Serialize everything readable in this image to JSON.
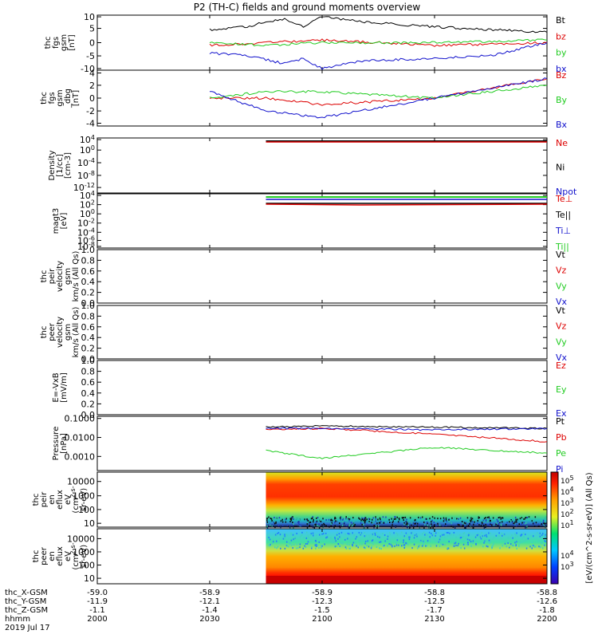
{
  "title": "P2 (TH-C) fields and ground moments overview",
  "colors": {
    "black": "#000000",
    "red": "#dd0000",
    "green": "#22cc22",
    "blue": "#1010cc"
  },
  "panels": [
    {
      "id": "fgs",
      "ylabel": [
        "thc",
        "fgs",
        "gsm",
        "[nT]"
      ],
      "ticks": [
        "10",
        "5",
        "0",
        "-5",
        "-10"
      ],
      "legend": [
        {
          "label": "Bt",
          "color": "#000000"
        },
        {
          "label": "bz",
          "color": "#dd0000"
        },
        {
          "label": "by",
          "color": "#22cc22"
        },
        {
          "label": "bx",
          "color": "#1010cc"
        }
      ]
    },
    {
      "id": "fgs_dbg",
      "ylabel": [
        "thc",
        "fgs",
        "gsm",
        "_dbg",
        "[nT]"
      ],
      "ticks": [
        "4",
        "2",
        "0",
        "-2",
        "-4"
      ],
      "legend": [
        {
          "label": "Bz",
          "color": "#dd0000"
        },
        {
          "label": "By",
          "color": "#22cc22"
        },
        {
          "label": "Bx",
          "color": "#1010cc"
        }
      ]
    },
    {
      "id": "density",
      "ylabel": [
        "Density",
        "[1/cc]",
        "[cm-3]"
      ],
      "ticks": [
        "10^4",
        "10^0",
        "10^-4",
        "10^-8",
        "10^-12"
      ],
      "legend": [
        {
          "label": "Ne",
          "color": "#dd0000"
        },
        {
          "label": "Ni",
          "color": "#000000"
        },
        {
          "label": "Npot",
          "color": "#1010cc"
        }
      ]
    },
    {
      "id": "temp",
      "ylabel": [
        "magt3",
        "[eV]"
      ],
      "ticks": [
        "10^4",
        "10^2",
        "10^0",
        "10^-2",
        "10^-4",
        "10^-6",
        "10^-8"
      ],
      "legend": [
        {
          "label": "Te⊥",
          "color": "#dd0000"
        },
        {
          "label": "Te||",
          "color": "#000000"
        },
        {
          "label": "Ti⊥",
          "color": "#1010cc"
        },
        {
          "label": "Ti||",
          "color": "#22cc22"
        }
      ]
    },
    {
      "id": "peir_vel",
      "ylabel": [
        "thc",
        "peir",
        "velocity",
        "gsm",
        "km/s (All Qs)"
      ],
      "ticks": [
        "1.0",
        "0.8",
        "0.6",
        "0.4",
        "0.2",
        "0.0"
      ],
      "legend": [
        {
          "label": "Vt",
          "color": "#000000"
        },
        {
          "label": "Vz",
          "color": "#dd0000"
        },
        {
          "label": "Vy",
          "color": "#22cc22"
        },
        {
          "label": "Vx",
          "color": "#1010cc"
        }
      ]
    },
    {
      "id": "peer_vel",
      "ylabel": [
        "thc",
        "peer",
        "velocity",
        "gsm",
        "km/s (All Qs)"
      ],
      "ticks": [
        "1.0",
        "0.8",
        "0.6",
        "0.4",
        "0.2",
        "0.0"
      ],
      "legend": [
        {
          "label": "Vt",
          "color": "#000000"
        },
        {
          "label": "Vz",
          "color": "#dd0000"
        },
        {
          "label": "Vy",
          "color": "#22cc22"
        },
        {
          "label": "Vx",
          "color": "#1010cc"
        }
      ]
    },
    {
      "id": "efield",
      "ylabel": [
        "E=-VxB",
        "[mV/m]"
      ],
      "ticks": [
        "1.0",
        "0.8",
        "0.6",
        "0.4",
        "0.2",
        "0.0"
      ],
      "legend": [
        {
          "label": "Ez",
          "color": "#dd0000"
        },
        {
          "label": "Ey",
          "color": "#22cc22"
        },
        {
          "label": "Ex",
          "color": "#1010cc"
        }
      ]
    },
    {
      "id": "pressure",
      "ylabel": [
        "Pressure",
        "[nPa]"
      ],
      "ticks": [
        "0.1000",
        "0.0100",
        "0.0010"
      ],
      "legend": [
        {
          "label": "Pt",
          "color": "#000000"
        },
        {
          "label": "Pb",
          "color": "#dd0000"
        },
        {
          "label": "Pe",
          "color": "#22cc22"
        },
        {
          "label": "Pi",
          "color": "#1010cc"
        }
      ]
    },
    {
      "id": "peir_spec",
      "ylabel": [
        "thc",
        "peir",
        "en",
        "eflux",
        "eV",
        "(cm^2-s-",
        "sr-eV)"
      ],
      "ticks": [
        "10000",
        "1000",
        "100",
        "10"
      ],
      "legend": []
    },
    {
      "id": "peer_spec",
      "ylabel": [
        "thc",
        "peer",
        "en",
        "eflux",
        "eV",
        "(cm^2-s-",
        "sr-eV)"
      ],
      "ticks": [
        "10000",
        "1000",
        "100",
        "10"
      ],
      "legend": []
    }
  ],
  "colorbar": {
    "label": "[eV/(cm^2-s-sr-eV)] (All Qs)",
    "ticks_upper": [
      "10^5",
      "10^4",
      "10^3",
      "10^2",
      "10^1"
    ],
    "ticks_lower": [
      "10^4",
      "10^3"
    ]
  },
  "xaxis": {
    "rows": [
      {
        "label": "thc_X-GSM",
        "values": [
          "-59.0",
          "-58.9",
          "-58.9",
          "-58.8",
          "-58.8"
        ]
      },
      {
        "label": "thc_Y-GSM",
        "values": [
          "-11.9",
          "-12.1",
          "-12.3",
          "-12.5",
          "-12.6"
        ]
      },
      {
        "label": "thc_Z-GSM",
        "values": [
          "-1.1",
          "-1.4",
          "-1.5",
          "-1.7",
          "-1.8"
        ]
      },
      {
        "label": "hhmm",
        "values": [
          "2000",
          "2030",
          "2100",
          "2130",
          "2200"
        ]
      }
    ],
    "date": "2019 Jul 17"
  },
  "chart_data": {
    "type": "line",
    "title": "P2 (TH-C) fields and ground moments overview",
    "x_time_hhmm": [
      "2000",
      "2030",
      "2100",
      "2130",
      "2200"
    ],
    "data_start_hhmm": "2045",
    "fgs_start_hhmm": "2030",
    "series": [
      {
        "panel": "fgs",
        "name": "Bt",
        "x": [
          "2030",
          "2040",
          "2045",
          "2050",
          "2055",
          "2100",
          "2110",
          "2130",
          "2145",
          "2200"
        ],
        "y": [
          5,
          6,
          8,
          9,
          6,
          10,
          8,
          6,
          5,
          4
        ]
      },
      {
        "panel": "fgs",
        "name": "bz",
        "x": [
          "2030",
          "2045",
          "2100",
          "2130",
          "2200"
        ],
        "y": [
          -1,
          0,
          1,
          -1,
          0
        ]
      },
      {
        "panel": "fgs",
        "name": "by",
        "x": [
          "2030",
          "2045",
          "2100",
          "2130",
          "2200"
        ],
        "y": [
          0,
          -1,
          0,
          0,
          1
        ]
      },
      {
        "panel": "fgs",
        "name": "bx",
        "x": [
          "2030",
          "2040",
          "2050",
          "2055",
          "2100",
          "2110",
          "2130",
          "2145",
          "2200"
        ],
        "y": [
          -4,
          -5,
          -8,
          -6,
          -10,
          -7,
          -6,
          -5,
          0
        ]
      },
      {
        "panel": "fgs_dbg",
        "name": "Bz",
        "x": [
          "2030",
          "2045",
          "2100",
          "2130",
          "2200"
        ],
        "y": [
          0,
          0,
          -1,
          0,
          3
        ]
      },
      {
        "panel": "fgs_dbg",
        "name": "By",
        "x": [
          "2030",
          "2045",
          "2100",
          "2130",
          "2200"
        ],
        "y": [
          0,
          1,
          1,
          0,
          2
        ]
      },
      {
        "panel": "fgs_dbg",
        "name": "Bx",
        "x": [
          "2030",
          "2045",
          "2100",
          "2130",
          "2200"
        ],
        "y": [
          1,
          -2,
          -3,
          0,
          3
        ]
      },
      {
        "panel": "pressure",
        "name": "Pt",
        "x": [
          "2045",
          "2100",
          "2130",
          "2200"
        ],
        "y": [
          0.035,
          0.04,
          0.035,
          0.03
        ]
      },
      {
        "panel": "pressure",
        "name": "Pb",
        "x": [
          "2045",
          "2100",
          "2130",
          "2200"
        ],
        "y": [
          0.025,
          0.03,
          0.015,
          0.006
        ]
      },
      {
        "panel": "pressure",
        "name": "Pe",
        "x": [
          "2045",
          "2100",
          "2130",
          "2200"
        ],
        "y": [
          0.002,
          0.0008,
          0.003,
          0.0015
        ]
      },
      {
        "panel": "pressure",
        "name": "Pi",
        "x": [
          "2045",
          "2100",
          "2130",
          "2200"
        ],
        "y": [
          0.03,
          0.03,
          0.025,
          0.03
        ]
      }
    ]
  }
}
